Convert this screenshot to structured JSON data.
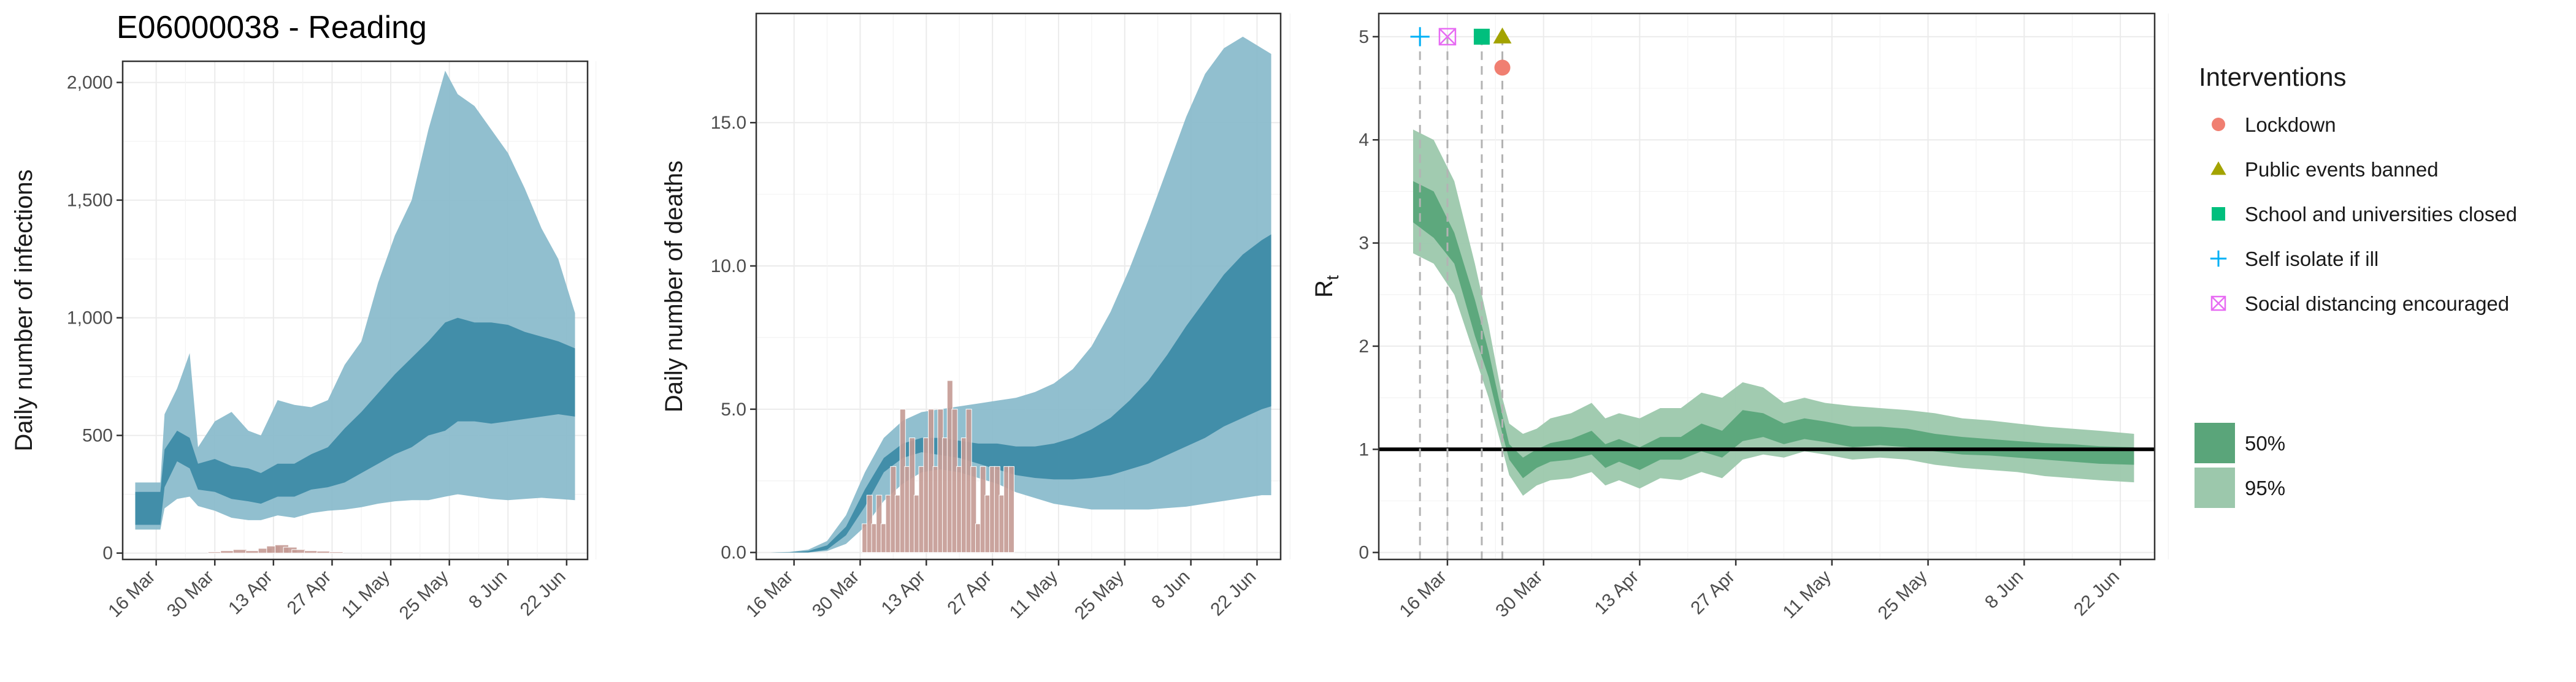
{
  "title": "E06000038 - Reading",
  "colors": {
    "infections_95": "#8bbccc",
    "infections_50": "#3e8ba7",
    "deaths_95": "#8bbccc",
    "deaths_50": "#3e8ba7",
    "observed_bars": "#c49a94",
    "rt_95": "#9cc8ac",
    "rt_50": "#5aa57a",
    "lockdown": "#f07f71",
    "public_events_banned": "#a3a300",
    "schools_closed": "#00bf7d",
    "self_isolate": "#00b0f6",
    "social_distancing": "#e76bf3"
  },
  "legend": {
    "interventions_title": "Interventions",
    "items": [
      {
        "label": "Lockdown",
        "icon": "circle"
      },
      {
        "label": "Public events banned",
        "icon": "triangle"
      },
      {
        "label": "School and universities closed",
        "icon": "square"
      },
      {
        "label": "Self isolate if ill",
        "icon": "plus"
      },
      {
        "label": "Social distancing encouraged",
        "icon": "boxed-x"
      }
    ],
    "bands": [
      {
        "label": "50%"
      },
      {
        "label": "95%"
      }
    ]
  },
  "chart_data": [
    {
      "type": "area",
      "ylabel": "Daily number of infections",
      "xlabel": "",
      "xlim": [
        "2020-03-08",
        "2020-06-27"
      ],
      "ylim": [
        0,
        2000
      ],
      "yticks": [
        0,
        500,
        1000,
        1500,
        2000
      ],
      "ytick_labels": [
        "0",
        "500",
        "1,000",
        "1,500",
        "2,000"
      ],
      "xticks": [
        "2020-03-16",
        "2020-03-30",
        "2020-04-13",
        "2020-04-27",
        "2020-05-11",
        "2020-05-25",
        "2020-06-08",
        "2020-06-22"
      ],
      "xtick_labels": [
        "16 Mar",
        "30 Mar",
        "13 Apr",
        "27 Apr",
        "11 May",
        "25 May",
        "8 Jun",
        "22 Jun"
      ],
      "grid": true,
      "x": [
        "2020-03-11",
        "2020-03-17",
        "2020-03-18",
        "2020-03-21",
        "2020-03-24",
        "2020-03-26",
        "2020-03-30",
        "2020-04-03",
        "2020-04-07",
        "2020-04-10",
        "2020-04-14",
        "2020-04-18",
        "2020-04-22",
        "2020-04-26",
        "2020-04-30",
        "2020-05-04",
        "2020-05-08",
        "2020-05-12",
        "2020-05-16",
        "2020-05-20",
        "2020-05-24",
        "2020-05-27",
        "2020-05-31",
        "2020-06-04",
        "2020-06-08",
        "2020-06-12",
        "2020-06-16",
        "2020-06-20",
        "2020-06-24"
      ],
      "series": [
        {
          "band": "95%",
          "lower": [
            100,
            100,
            190,
            230,
            240,
            200,
            180,
            150,
            140,
            140,
            160,
            150,
            170,
            180,
            185,
            195,
            210,
            220,
            225,
            225,
            240,
            250,
            240,
            230,
            225,
            230,
            235,
            230,
            225
          ],
          "upper": [
            300,
            300,
            590,
            700,
            850,
            450,
            560,
            600,
            520,
            500,
            650,
            630,
            620,
            650,
            800,
            900,
            1150,
            1350,
            1500,
            1800,
            2050,
            1950,
            1900,
            1800,
            1700,
            1550,
            1380,
            1250,
            1020
          ]
        },
        {
          "band": "50%",
          "lower": [
            120,
            120,
            280,
            390,
            360,
            270,
            260,
            230,
            220,
            210,
            240,
            240,
            270,
            280,
            300,
            340,
            380,
            420,
            450,
            500,
            520,
            560,
            560,
            550,
            560,
            570,
            580,
            590,
            580
          ],
          "upper": [
            260,
            260,
            440,
            520,
            490,
            380,
            400,
            370,
            360,
            340,
            380,
            380,
            420,
            450,
            530,
            600,
            680,
            760,
            830,
            900,
            980,
            1000,
            980,
            980,
            970,
            940,
            920,
            900,
            870
          ]
        }
      ],
      "observed": {
        "x": [
          "2020-03-30",
          "2020-04-02",
          "2020-04-05",
          "2020-04-08",
          "2020-04-11",
          "2020-04-13",
          "2020-04-15",
          "2020-04-17",
          "2020-04-19",
          "2020-04-22",
          "2020-04-25",
          "2020-04-28"
        ],
        "values": [
          5,
          10,
          15,
          10,
          20,
          30,
          35,
          25,
          15,
          10,
          8,
          5
        ]
      }
    },
    {
      "type": "area",
      "ylabel": "Daily number of deaths",
      "xlabel": "",
      "xlim": [
        "2020-03-08",
        "2020-06-27"
      ],
      "ylim": [
        0,
        18
      ],
      "yticks": [
        0,
        5,
        10,
        15
      ],
      "ytick_labels": [
        "0.0",
        "5.0",
        "10.0",
        "15.0"
      ],
      "xticks": [
        "2020-03-16",
        "2020-03-30",
        "2020-04-13",
        "2020-04-27",
        "2020-05-11",
        "2020-05-25",
        "2020-06-08",
        "2020-06-22"
      ],
      "xtick_labels": [
        "16 Mar",
        "30 Mar",
        "13 Apr",
        "27 Apr",
        "11 May",
        "25 May",
        "8 Jun",
        "22 Jun"
      ],
      "grid": true,
      "x": [
        "2020-03-11",
        "2020-03-15",
        "2020-03-19",
        "2020-03-23",
        "2020-03-27",
        "2020-03-31",
        "2020-04-04",
        "2020-04-08",
        "2020-04-12",
        "2020-04-16",
        "2020-04-20",
        "2020-04-24",
        "2020-04-28",
        "2020-05-02",
        "2020-05-06",
        "2020-05-10",
        "2020-05-14",
        "2020-05-18",
        "2020-05-22",
        "2020-05-26",
        "2020-05-30",
        "2020-06-03",
        "2020-06-07",
        "2020-06-11",
        "2020-06-15",
        "2020-06-19",
        "2020-06-23",
        "2020-06-25"
      ],
      "series": [
        {
          "band": "95%",
          "lower": [
            0,
            0,
            0,
            0.05,
            0.3,
            0.9,
            1.8,
            2.4,
            2.8,
            2.9,
            2.8,
            2.6,
            2.4,
            2.1,
            1.9,
            1.7,
            1.6,
            1.5,
            1.5,
            1.5,
            1.5,
            1.55,
            1.6,
            1.7,
            1.8,
            1.9,
            2.0,
            2.0
          ],
          "upper": [
            0,
            0.02,
            0.1,
            0.4,
            1.3,
            2.8,
            4.0,
            4.6,
            4.9,
            5.0,
            5.1,
            5.2,
            5.3,
            5.4,
            5.6,
            5.9,
            6.4,
            7.2,
            8.4,
            9.9,
            11.6,
            13.4,
            15.2,
            16.7,
            17.6,
            18.0,
            17.6,
            17.4
          ]
        },
        {
          "band": "50%",
          "lower": [
            0,
            0,
            0,
            0.1,
            0.6,
            1.6,
            2.8,
            3.3,
            3.5,
            3.4,
            3.3,
            3.1,
            2.9,
            2.7,
            2.6,
            2.55,
            2.55,
            2.6,
            2.7,
            2.9,
            3.1,
            3.4,
            3.7,
            4.0,
            4.4,
            4.7,
            5.0,
            5.1
          ],
          "upper": [
            0,
            0.01,
            0.05,
            0.25,
            0.9,
            2.2,
            3.3,
            3.8,
            4.0,
            4.0,
            3.9,
            3.8,
            3.8,
            3.7,
            3.7,
            3.8,
            4.0,
            4.3,
            4.7,
            5.3,
            6.0,
            6.9,
            7.9,
            8.8,
            9.7,
            10.4,
            10.9,
            11.1
          ]
        }
      ],
      "observed": {
        "x": [
          "2020-03-31",
          "2020-04-01",
          "2020-04-02",
          "2020-04-03",
          "2020-04-04",
          "2020-04-05",
          "2020-04-06",
          "2020-04-07",
          "2020-04-08",
          "2020-04-09",
          "2020-04-10",
          "2020-04-11",
          "2020-04-12",
          "2020-04-13",
          "2020-04-14",
          "2020-04-15",
          "2020-04-16",
          "2020-04-17",
          "2020-04-18",
          "2020-04-19",
          "2020-04-20",
          "2020-04-21",
          "2020-04-22",
          "2020-04-23",
          "2020-04-24",
          "2020-04-25",
          "2020-04-26",
          "2020-04-27",
          "2020-04-28",
          "2020-04-29",
          "2020-04-30",
          "2020-05-01"
        ],
        "values": [
          1,
          2,
          1,
          2,
          1,
          2,
          3,
          2,
          5,
          3,
          4,
          2,
          3,
          4,
          5,
          3,
          5,
          4,
          6,
          5,
          3,
          4,
          5,
          3,
          1,
          3,
          2,
          3,
          3,
          2,
          3,
          3
        ]
      }
    },
    {
      "type": "area",
      "ylabel": "R",
      "ylabel_subscript": "t",
      "xlabel": "",
      "xlim": [
        "2020-03-06",
        "2020-06-27"
      ],
      "ylim": [
        0,
        5
      ],
      "yticks": [
        0,
        1,
        2,
        3,
        4,
        5
      ],
      "ytick_labels": [
        "0",
        "1",
        "2",
        "3",
        "4",
        "5"
      ],
      "xticks": [
        "2020-03-16",
        "2020-03-30",
        "2020-04-13",
        "2020-04-27",
        "2020-05-11",
        "2020-05-25",
        "2020-06-08",
        "2020-06-22"
      ],
      "xtick_labels": [
        "16 Mar",
        "30 Mar",
        "13 Apr",
        "27 Apr",
        "11 May",
        "25 May",
        "8 Jun",
        "22 Jun"
      ],
      "grid": true,
      "reference_line": 1,
      "x": [
        "2020-03-11",
        "2020-03-14",
        "2020-03-17",
        "2020-03-20",
        "2020-03-22",
        "2020-03-24",
        "2020-03-25",
        "2020-03-27",
        "2020-03-29",
        "2020-03-31",
        "2020-04-03",
        "2020-04-06",
        "2020-04-08",
        "2020-04-10",
        "2020-04-13",
        "2020-04-16",
        "2020-04-19",
        "2020-04-22",
        "2020-04-25",
        "2020-04-28",
        "2020-05-01",
        "2020-05-04",
        "2020-05-07",
        "2020-05-10",
        "2020-05-14",
        "2020-05-18",
        "2020-05-22",
        "2020-05-26",
        "2020-05-30",
        "2020-06-03",
        "2020-06-07",
        "2020-06-11",
        "2020-06-15",
        "2020-06-19",
        "2020-06-24"
      ],
      "series": [
        {
          "band": "95%",
          "lower": [
            2.9,
            2.8,
            2.5,
            1.9,
            1.5,
            1.0,
            0.75,
            0.55,
            0.65,
            0.7,
            0.72,
            0.78,
            0.65,
            0.7,
            0.62,
            0.72,
            0.7,
            0.78,
            0.72,
            0.9,
            0.95,
            0.92,
            0.98,
            0.95,
            0.9,
            0.92,
            0.9,
            0.85,
            0.82,
            0.8,
            0.78,
            0.74,
            0.72,
            0.7,
            0.68
          ],
          "upper": [
            4.1,
            4.0,
            3.6,
            2.8,
            2.2,
            1.5,
            1.25,
            1.15,
            1.2,
            1.3,
            1.35,
            1.45,
            1.3,
            1.35,
            1.3,
            1.4,
            1.4,
            1.55,
            1.5,
            1.65,
            1.6,
            1.45,
            1.5,
            1.45,
            1.42,
            1.4,
            1.38,
            1.35,
            1.3,
            1.28,
            1.25,
            1.22,
            1.2,
            1.18,
            1.15
          ]
        },
        {
          "band": "50%",
          "lower": [
            3.2,
            3.05,
            2.8,
            2.1,
            1.7,
            1.15,
            0.9,
            0.72,
            0.82,
            0.88,
            0.9,
            0.95,
            0.82,
            0.88,
            0.8,
            0.9,
            0.9,
            0.98,
            0.92,
            1.08,
            1.12,
            1.05,
            1.1,
            1.07,
            1.02,
            1.04,
            1.02,
            0.98,
            0.95,
            0.94,
            0.92,
            0.9,
            0.88,
            0.86,
            0.85
          ],
          "upper": [
            3.6,
            3.5,
            3.1,
            2.45,
            1.95,
            1.33,
            1.05,
            0.92,
            1.0,
            1.06,
            1.1,
            1.18,
            1.05,
            1.1,
            1.02,
            1.12,
            1.12,
            1.25,
            1.18,
            1.38,
            1.35,
            1.25,
            1.3,
            1.27,
            1.22,
            1.22,
            1.2,
            1.15,
            1.12,
            1.1,
            1.08,
            1.06,
            1.05,
            1.03,
            1.02
          ]
        }
      ],
      "interventions": [
        {
          "name": "Self isolate if ill",
          "date": "2020-03-12",
          "marker": "plus",
          "y": 5
        },
        {
          "name": "Social distancing encouraged",
          "date": "2020-03-16",
          "marker": "boxed-x",
          "y": 5
        },
        {
          "name": "School and universities closed",
          "date": "2020-03-21",
          "marker": "square",
          "y": 5
        },
        {
          "name": "Public events banned",
          "date": "2020-03-24",
          "marker": "triangle",
          "y": 5
        },
        {
          "name": "Lockdown",
          "date": "2020-03-24",
          "marker": "circle",
          "y": 4.7
        }
      ]
    }
  ]
}
